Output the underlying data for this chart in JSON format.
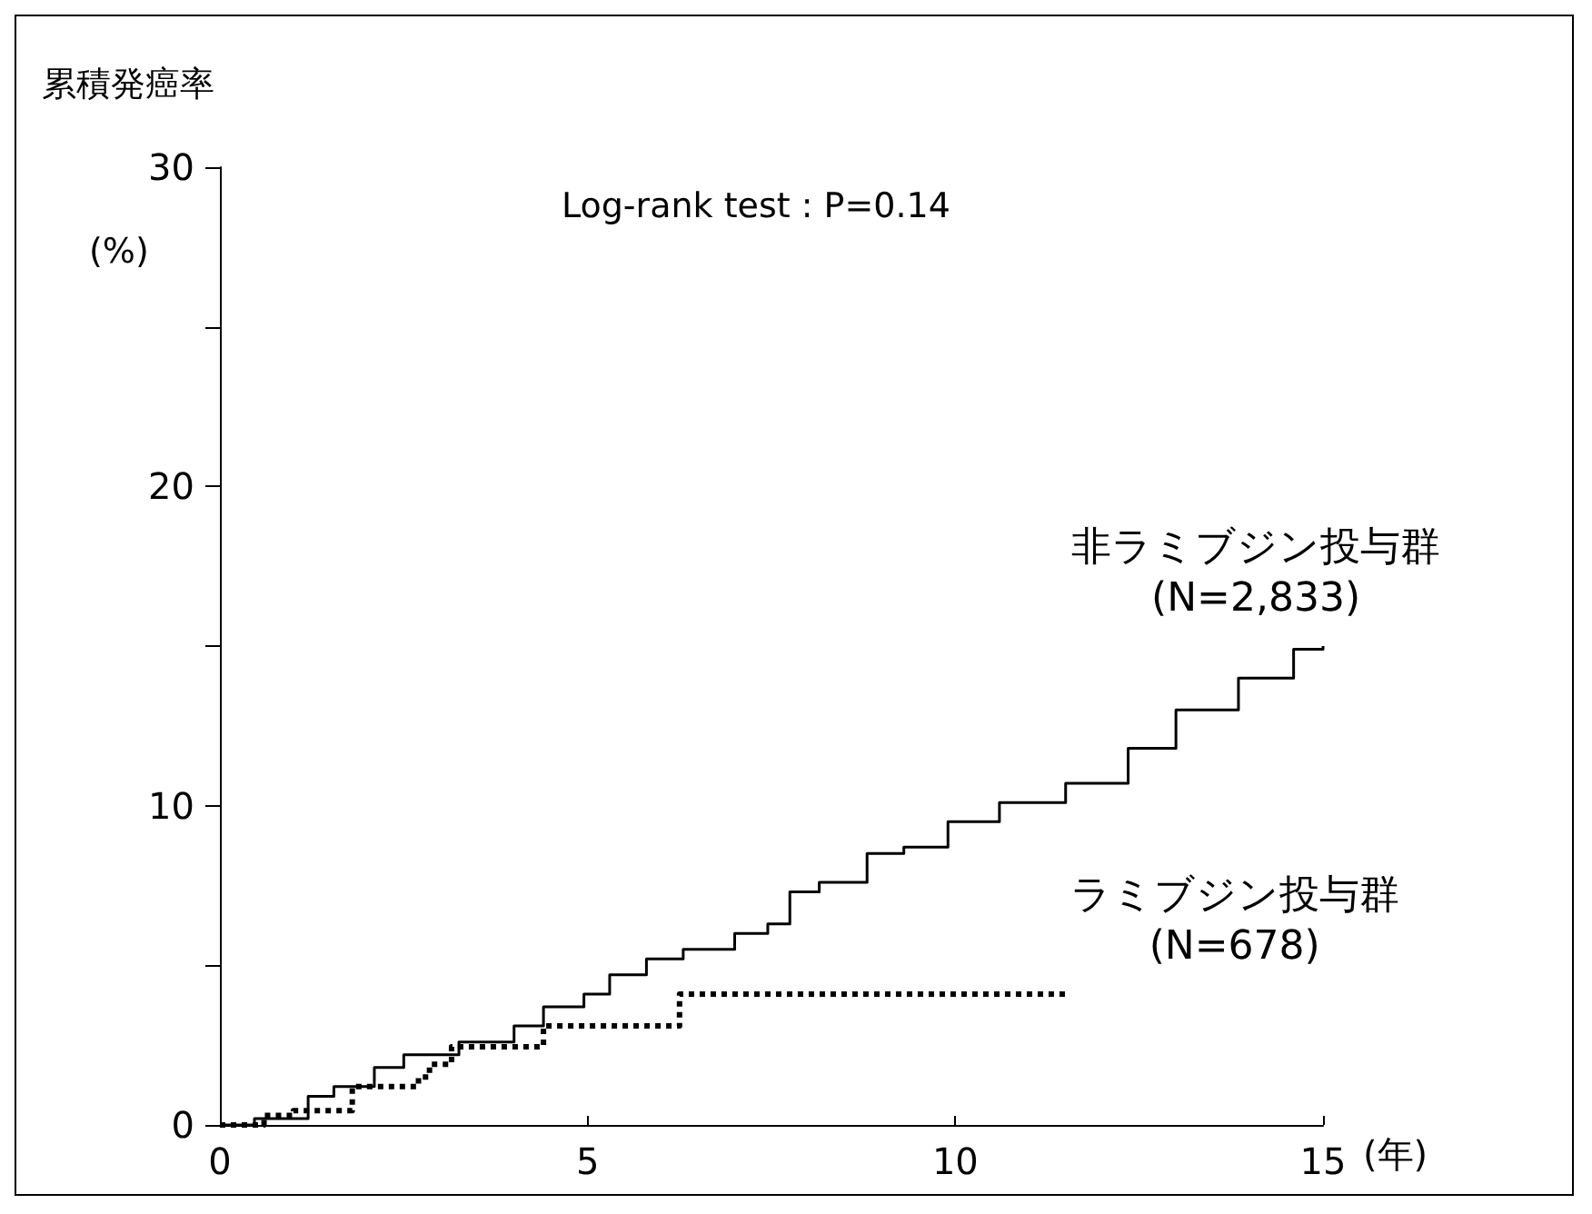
{
  "chart_data": {
    "type": "step",
    "ylabel": "累積発癌率",
    "xlabel": "(年)",
    "annotations": [
      "Log-rank test : P=0.14",
      "(%)"
    ],
    "xlim": [
      0,
      15
    ],
    "xticks": [
      0,
      5,
      10,
      15
    ],
    "ylim": [
      0,
      30
    ],
    "yticks": [
      0,
      {
        "value": 5,
        "label": null
      },
      10,
      {
        "value": 15,
        "label": null
      },
      20,
      {
        "value": 25,
        "label": null
      },
      30
    ],
    "grid": false,
    "legend": false,
    "series": [
      {
        "name": "非ラミブジン投与群\n(N=2,833)",
        "color": "#000000",
        "line_style": "solid",
        "x": [
          0,
          0.47,
          1.2,
          1.55,
          2.1,
          2.5,
          3.0,
          3.25,
          4.0,
          4.4,
          4.95,
          5.3,
          5.8,
          6.3,
          6.7,
          7.0,
          7.45,
          7.75,
          8.15,
          8.8,
          9.3,
          9.9,
          10.6,
          11.5,
          12.35,
          13.0,
          13.85,
          14.6,
          15.0
        ],
        "values": [
          0,
          0.2,
          0.9,
          1.2,
          1.8,
          2.2,
          2.2,
          2.6,
          3.1,
          3.7,
          4.1,
          4.7,
          5.2,
          5.5,
          5.5,
          6.0,
          6.3,
          7.3,
          7.6,
          8.5,
          8.7,
          9.5,
          10.1,
          10.7,
          11.8,
          13.0,
          14.0,
          14.9,
          15.0
        ]
      },
      {
        "name": "ラミブジン投与群\n(N=678)",
        "color": "#000000",
        "line_style": "dotted",
        "x": [
          0,
          0.6,
          1.0,
          1.8,
          2.7,
          2.85,
          3.15,
          4.35,
          4.4,
          6.25,
          11.5
        ],
        "values": [
          0,
          0.3,
          0.45,
          1.2,
          1.5,
          1.9,
          2.45,
          2.45,
          3.1,
          4.1,
          4.1
        ]
      }
    ]
  }
}
